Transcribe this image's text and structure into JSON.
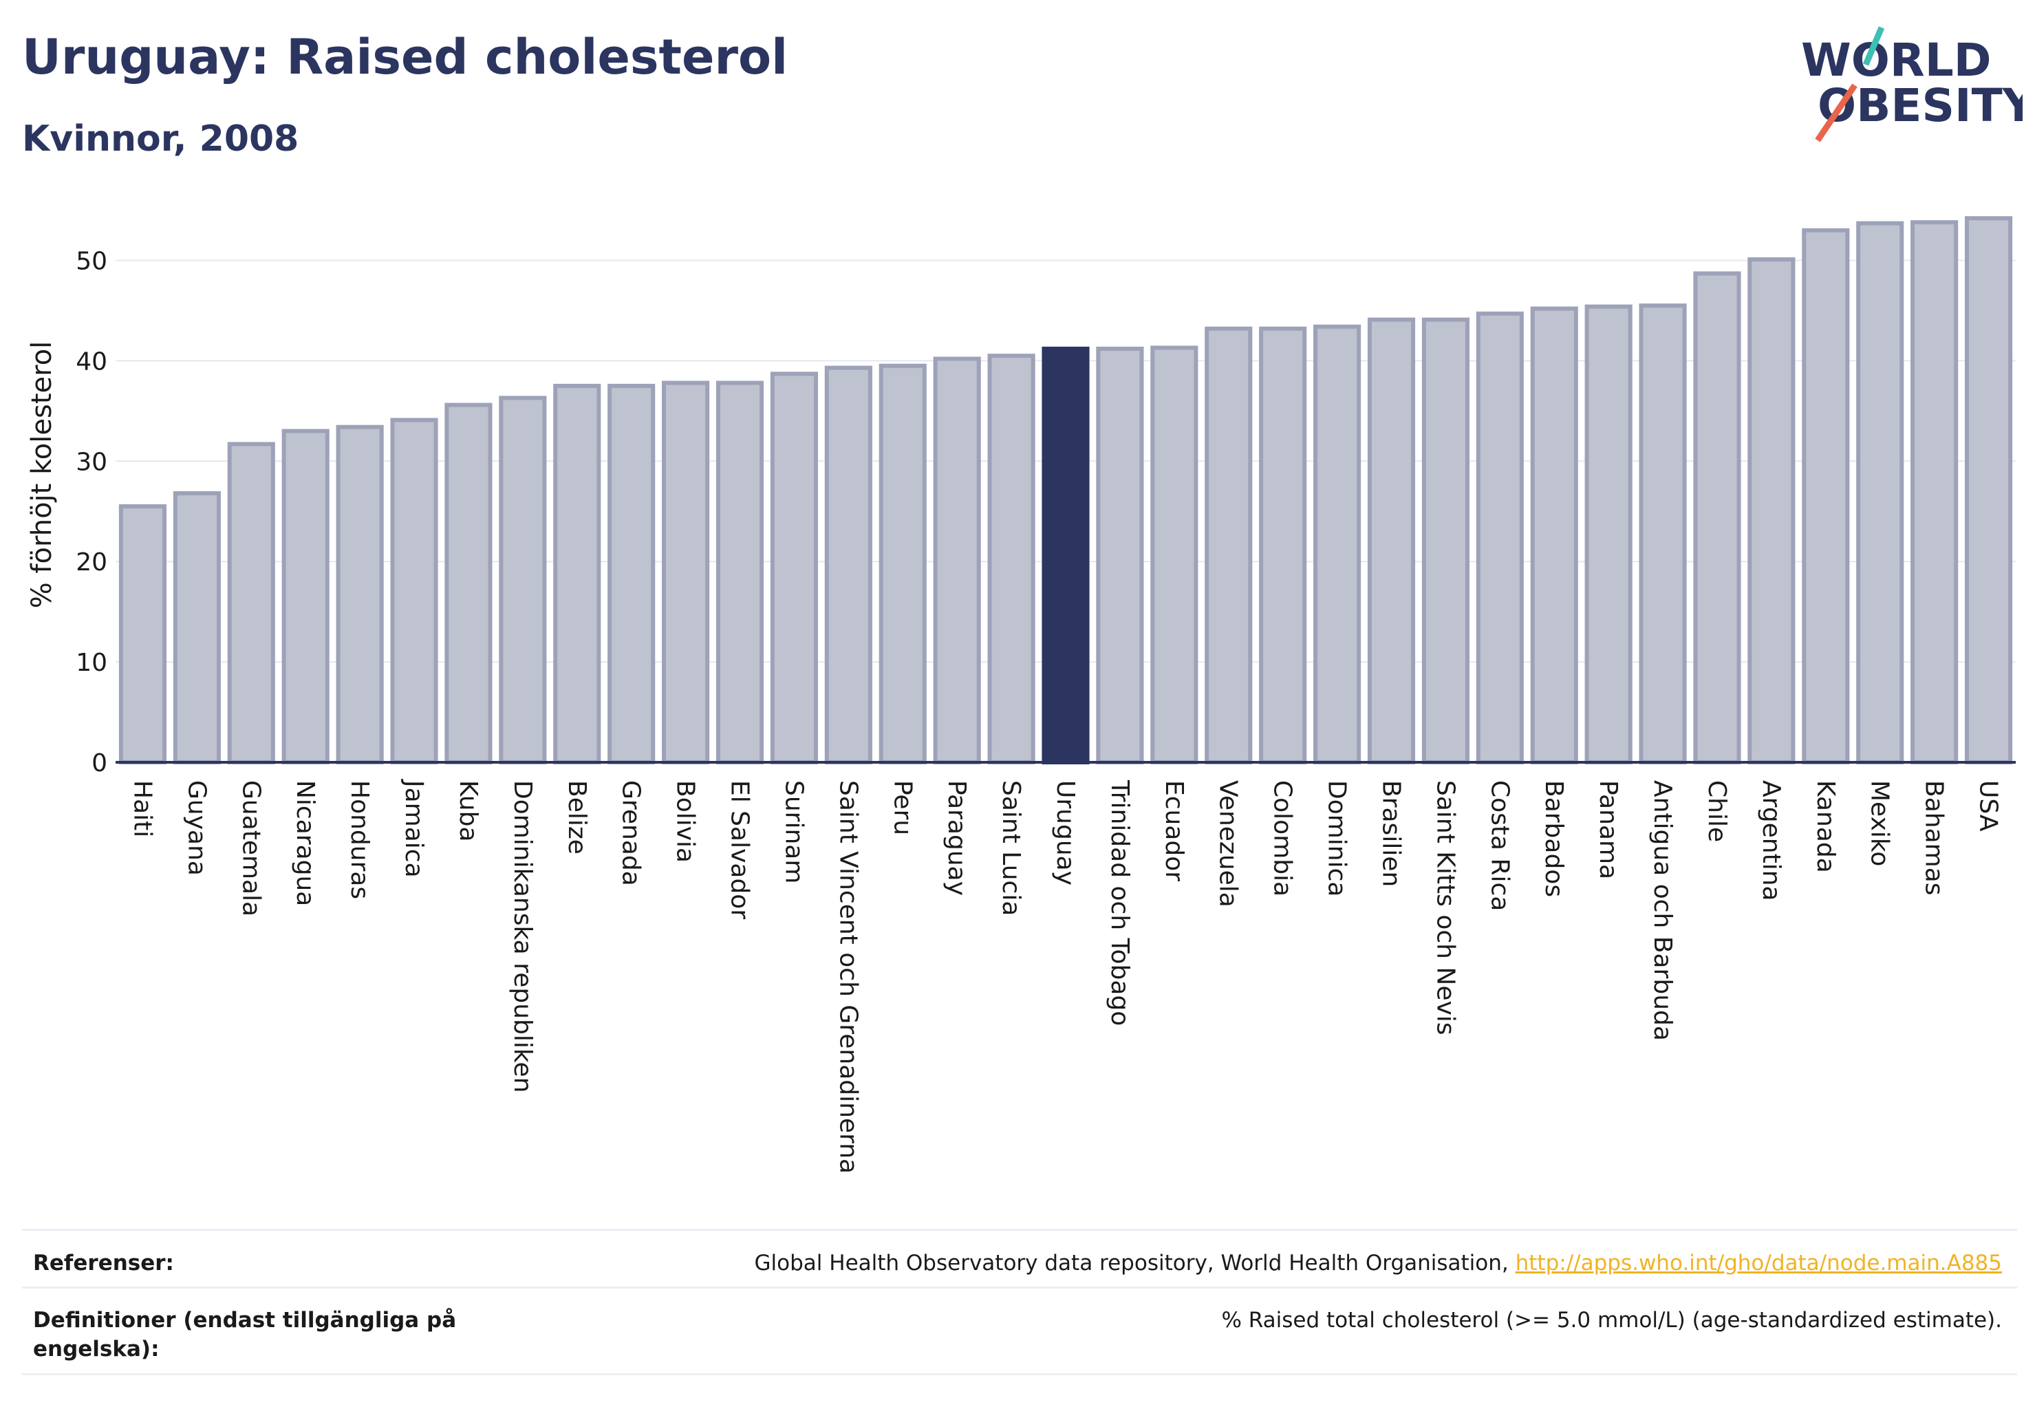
{
  "header": {
    "title": "Uruguay: Raised cholesterol",
    "subtitle": "Kvinnor, 2008"
  },
  "logo": {
    "line1": "WORLD",
    "line2": "OBESITY",
    "accent_teal": "#3ebfb4",
    "accent_red": "#e8644a",
    "text_color": "#2b3560"
  },
  "colors": {
    "bar": "#bfc2cf",
    "bar_border": "#9da2b8",
    "highlight": "#2b3560",
    "axis_text": "#1a1a1a"
  },
  "chart_data": {
    "type": "bar",
    "ylabel": "% förhöjt kolesterol",
    "ylim": [
      0,
      55
    ],
    "yticks": [
      0,
      10,
      20,
      30,
      40,
      50
    ],
    "grid": true,
    "highlight": "Uruguay",
    "categories": [
      "Haiti",
      "Guyana",
      "Guatemala",
      "Nicaragua",
      "Honduras",
      "Jamaica",
      "Kuba",
      "Dominikanska republiken",
      "Belize",
      "Grenada",
      "Bolivia",
      "El Salvador",
      "Surinam",
      "Saint Vincent och Grenadinerna",
      "Peru",
      "Paraguay",
      "Saint Lucia",
      "Uruguay",
      "Trinidad och Tobago",
      "Ecuador",
      "Venezuela",
      "Colombia",
      "Dominica",
      "Brasilien",
      "Saint Kitts och Nevis",
      "Costa Rica",
      "Barbados",
      "Panama",
      "Antigua och Barbuda",
      "Chile",
      "Argentina",
      "Kanada",
      "Mexiko",
      "Bahamas",
      "USA"
    ],
    "values": [
      25.5,
      26.8,
      31.7,
      33.0,
      33.4,
      34.1,
      35.6,
      36.3,
      37.5,
      37.5,
      37.8,
      37.8,
      38.7,
      39.3,
      39.5,
      40.2,
      40.5,
      41.2,
      41.2,
      41.3,
      43.2,
      43.2,
      43.4,
      44.1,
      44.1,
      44.7,
      45.2,
      45.4,
      45.5,
      48.7,
      50.1,
      53.0,
      53.7,
      53.8,
      54.2
    ]
  },
  "footer": {
    "ref_label": "Referenser:",
    "ref_text": "Global Health Observatory data repository, World Health Organisation, ",
    "ref_link": "http://apps.who.int/gho/data/node.main.A885",
    "def_label": "Definitioner (endast tillgängliga på engelska):",
    "def_text": "% Raised total cholesterol (>= 5.0 mmol/L) (age-standardized estimate)."
  }
}
